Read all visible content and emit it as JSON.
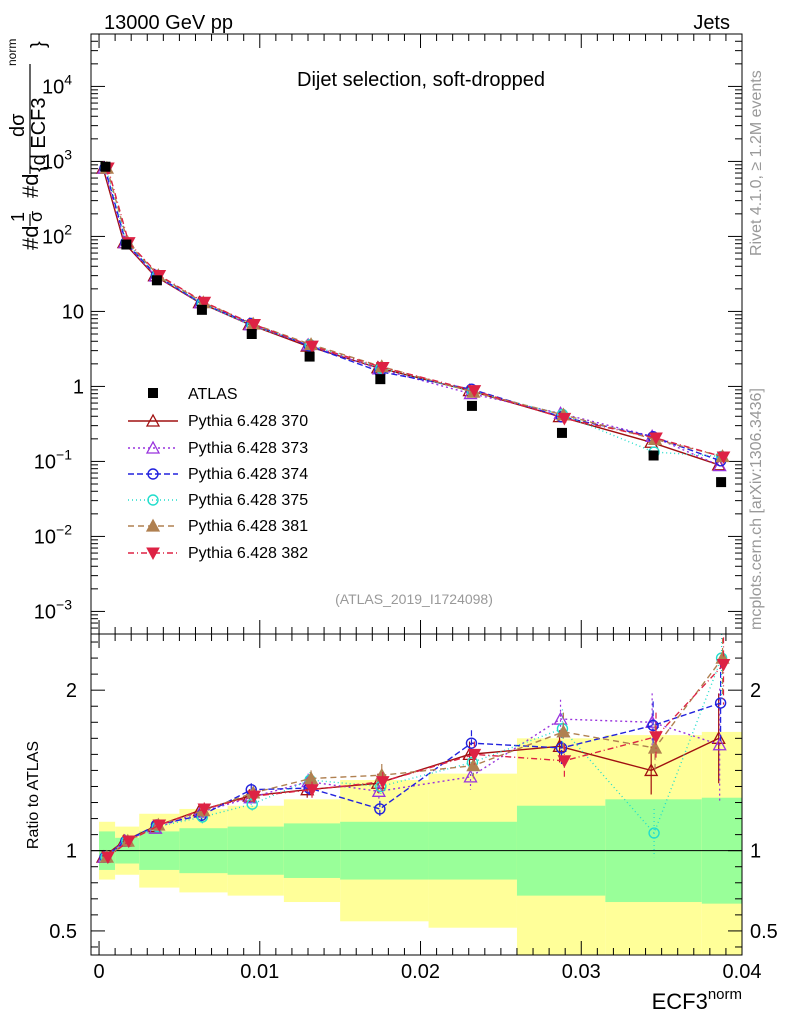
{
  "header": {
    "left": "13000 GeV pp",
    "right": "Jets",
    "side_top": "Rivet 4.1.0, ≥ 1.2M events",
    "side_bottom": "mcplots.cern.ch [arXiv:1306.3436]",
    "watermark": "(ATLAS_2019_I1724098)"
  },
  "colors": {
    "data": "#000000",
    "band_inner": "#99ff99",
    "band_outer": "#ffff99",
    "p370": "#a01010",
    "p373": "#9933dd",
    "p374": "#2222dd",
    "p375": "#22ddcc",
    "p381": "#b08050",
    "p382": "#dd2244"
  },
  "chart_data": {
    "type": "scatter",
    "title": "Dijet selection, soft-dropped",
    "xlabel": "ECF3",
    "xlabel_sup": "norm",
    "ylabel_parts": [
      "#d",
      "1",
      "σ",
      "#d",
      "dσ",
      "{d ECF3",
      "norm",
      "}"
    ],
    "ratio_ylabel": "Ratio to ATLAS",
    "xlim": [
      -0.0005,
      0.04
    ],
    "ylim": [
      0.0005,
      50000
    ],
    "ratio_ylim": [
      0.35,
      2.35
    ],
    "x_ticks": [
      "0",
      "0.01",
      "0.02",
      "0.03",
      "0.04"
    ],
    "x_tick_values": [
      0,
      0.01,
      0.02,
      0.03,
      0.04
    ],
    "y_ticks": [
      {
        "value": 0.001,
        "base": "10",
        "exp": "−3"
      },
      {
        "value": 0.01,
        "base": "10",
        "exp": "−2"
      },
      {
        "value": 0.1,
        "base": "10",
        "exp": "−1"
      },
      {
        "value": 1,
        "base": "1",
        "exp": ""
      },
      {
        "value": 10,
        "base": "10",
        "exp": ""
      },
      {
        "value": 100,
        "base": "10",
        "exp": "2"
      },
      {
        "value": 1000,
        "base": "10",
        "exp": "3"
      },
      {
        "value": 10000,
        "base": "10",
        "exp": "4"
      }
    ],
    "ratio_ticks": [
      {
        "value": 0.5,
        "label": "0.5"
      },
      {
        "value": 1,
        "label": "1"
      },
      {
        "value": 2,
        "label": "2"
      }
    ],
    "bin_edges": [
      0,
      0.001,
      0.0025,
      0.005,
      0.008,
      0.0115,
      0.015,
      0.0205,
      0.026,
      0.0315,
      0.0375,
      0.04
    ],
    "x": [
      0.0004,
      0.0017,
      0.0036,
      0.0064,
      0.0095,
      0.0131,
      0.0175,
      0.0232,
      0.0288,
      0.0345,
      0.0387
    ],
    "atlas": [
      850,
      78,
      26,
      10.5,
      5.0,
      2.5,
      1.25,
      0.55,
      0.24,
      0.12,
      0.053
    ],
    "band_inner": [
      [
        0.88,
        1.12
      ],
      [
        0.92,
        1.08
      ],
      [
        0.88,
        1.12
      ],
      [
        0.86,
        1.14
      ],
      [
        0.85,
        1.15
      ],
      [
        0.83,
        1.17
      ],
      [
        0.82,
        1.18
      ],
      [
        0.82,
        1.18
      ],
      [
        0.72,
        1.28
      ],
      [
        0.68,
        1.32
      ],
      [
        0.67,
        1.33
      ]
    ],
    "band_outer": [
      [
        0.82,
        1.18
      ],
      [
        0.85,
        1.15
      ],
      [
        0.77,
        1.23
      ],
      [
        0.74,
        1.26
      ],
      [
        0.72,
        1.28
      ],
      [
        0.68,
        1.32
      ],
      [
        0.56,
        1.44
      ],
      [
        0.52,
        1.48
      ],
      [
        0.1,
        1.7
      ],
      [
        0.1,
        1.72
      ],
      [
        0.1,
        1.74
      ]
    ],
    "series": [
      {
        "name": "Pythia 6.428 370",
        "key": "p370",
        "marker": "triangle-open",
        "dash": "",
        "ratio": [
          0.96,
          1.06,
          1.15,
          1.25,
          1.34,
          1.38,
          1.42,
          1.6,
          1.65,
          1.5,
          1.7
        ],
        "err": [
          0.02,
          0.02,
          0.03,
          0.04,
          0.04,
          0.05,
          0.06,
          0.08,
          0.1,
          0.15,
          0.28
        ]
      },
      {
        "name": "Pythia 6.428 373",
        "key": "p373",
        "marker": "triangle-open",
        "dash": "2,3",
        "ratio": [
          0.96,
          1.06,
          1.14,
          1.24,
          1.33,
          1.43,
          1.37,
          1.46,
          1.82,
          1.8,
          1.66
        ],
        "err": [
          0.02,
          0.02,
          0.03,
          0.04,
          0.04,
          0.05,
          0.06,
          0.08,
          0.12,
          0.18,
          0.35
        ]
      },
      {
        "name": "Pythia 6.428 374",
        "key": "p374",
        "marker": "circle-open",
        "dash": "6,3",
        "ratio": [
          0.96,
          1.06,
          1.16,
          1.22,
          1.38,
          1.39,
          1.26,
          1.67,
          1.64,
          1.78,
          1.92
        ],
        "err": [
          0.02,
          0.02,
          0.03,
          0.04,
          0.04,
          0.05,
          0.05,
          0.08,
          0.1,
          0.15,
          0.25
        ]
      },
      {
        "name": "Pythia 6.428 375",
        "key": "p375",
        "marker": "circle-open",
        "dash": "1,3",
        "ratio": [
          0.96,
          1.06,
          1.15,
          1.21,
          1.29,
          1.44,
          1.4,
          1.55,
          1.76,
          1.11,
          2.2
        ],
        "err": [
          0.02,
          0.02,
          0.03,
          0.04,
          0.04,
          0.05,
          0.06,
          0.08,
          0.12,
          0.15,
          0.25
        ]
      },
      {
        "name": "Pythia 6.428 381",
        "key": "p381",
        "marker": "triangle-full",
        "dash": "6,4",
        "ratio": [
          0.96,
          1.06,
          1.16,
          1.25,
          1.36,
          1.45,
          1.47,
          1.53,
          1.74,
          1.64,
          2.2
        ],
        "err": [
          0.02,
          0.02,
          0.03,
          0.04,
          0.04,
          0.05,
          0.07,
          0.08,
          0.12,
          0.15,
          0.25
        ]
      },
      {
        "name": "Pythia 6.428 382",
        "key": "p382",
        "marker": "triangle-down-full",
        "dash": "6,3,1,3",
        "ratio": [
          0.96,
          1.06,
          1.16,
          1.26,
          1.34,
          1.38,
          1.43,
          1.6,
          1.56,
          1.71,
          2.16
        ],
        "err": [
          0.02,
          0.02,
          0.03,
          0.04,
          0.04,
          0.05,
          0.06,
          0.08,
          0.1,
          0.15,
          0.25
        ]
      }
    ],
    "legend_data_label": "ATLAS",
    "legend_position": "lower-left"
  }
}
